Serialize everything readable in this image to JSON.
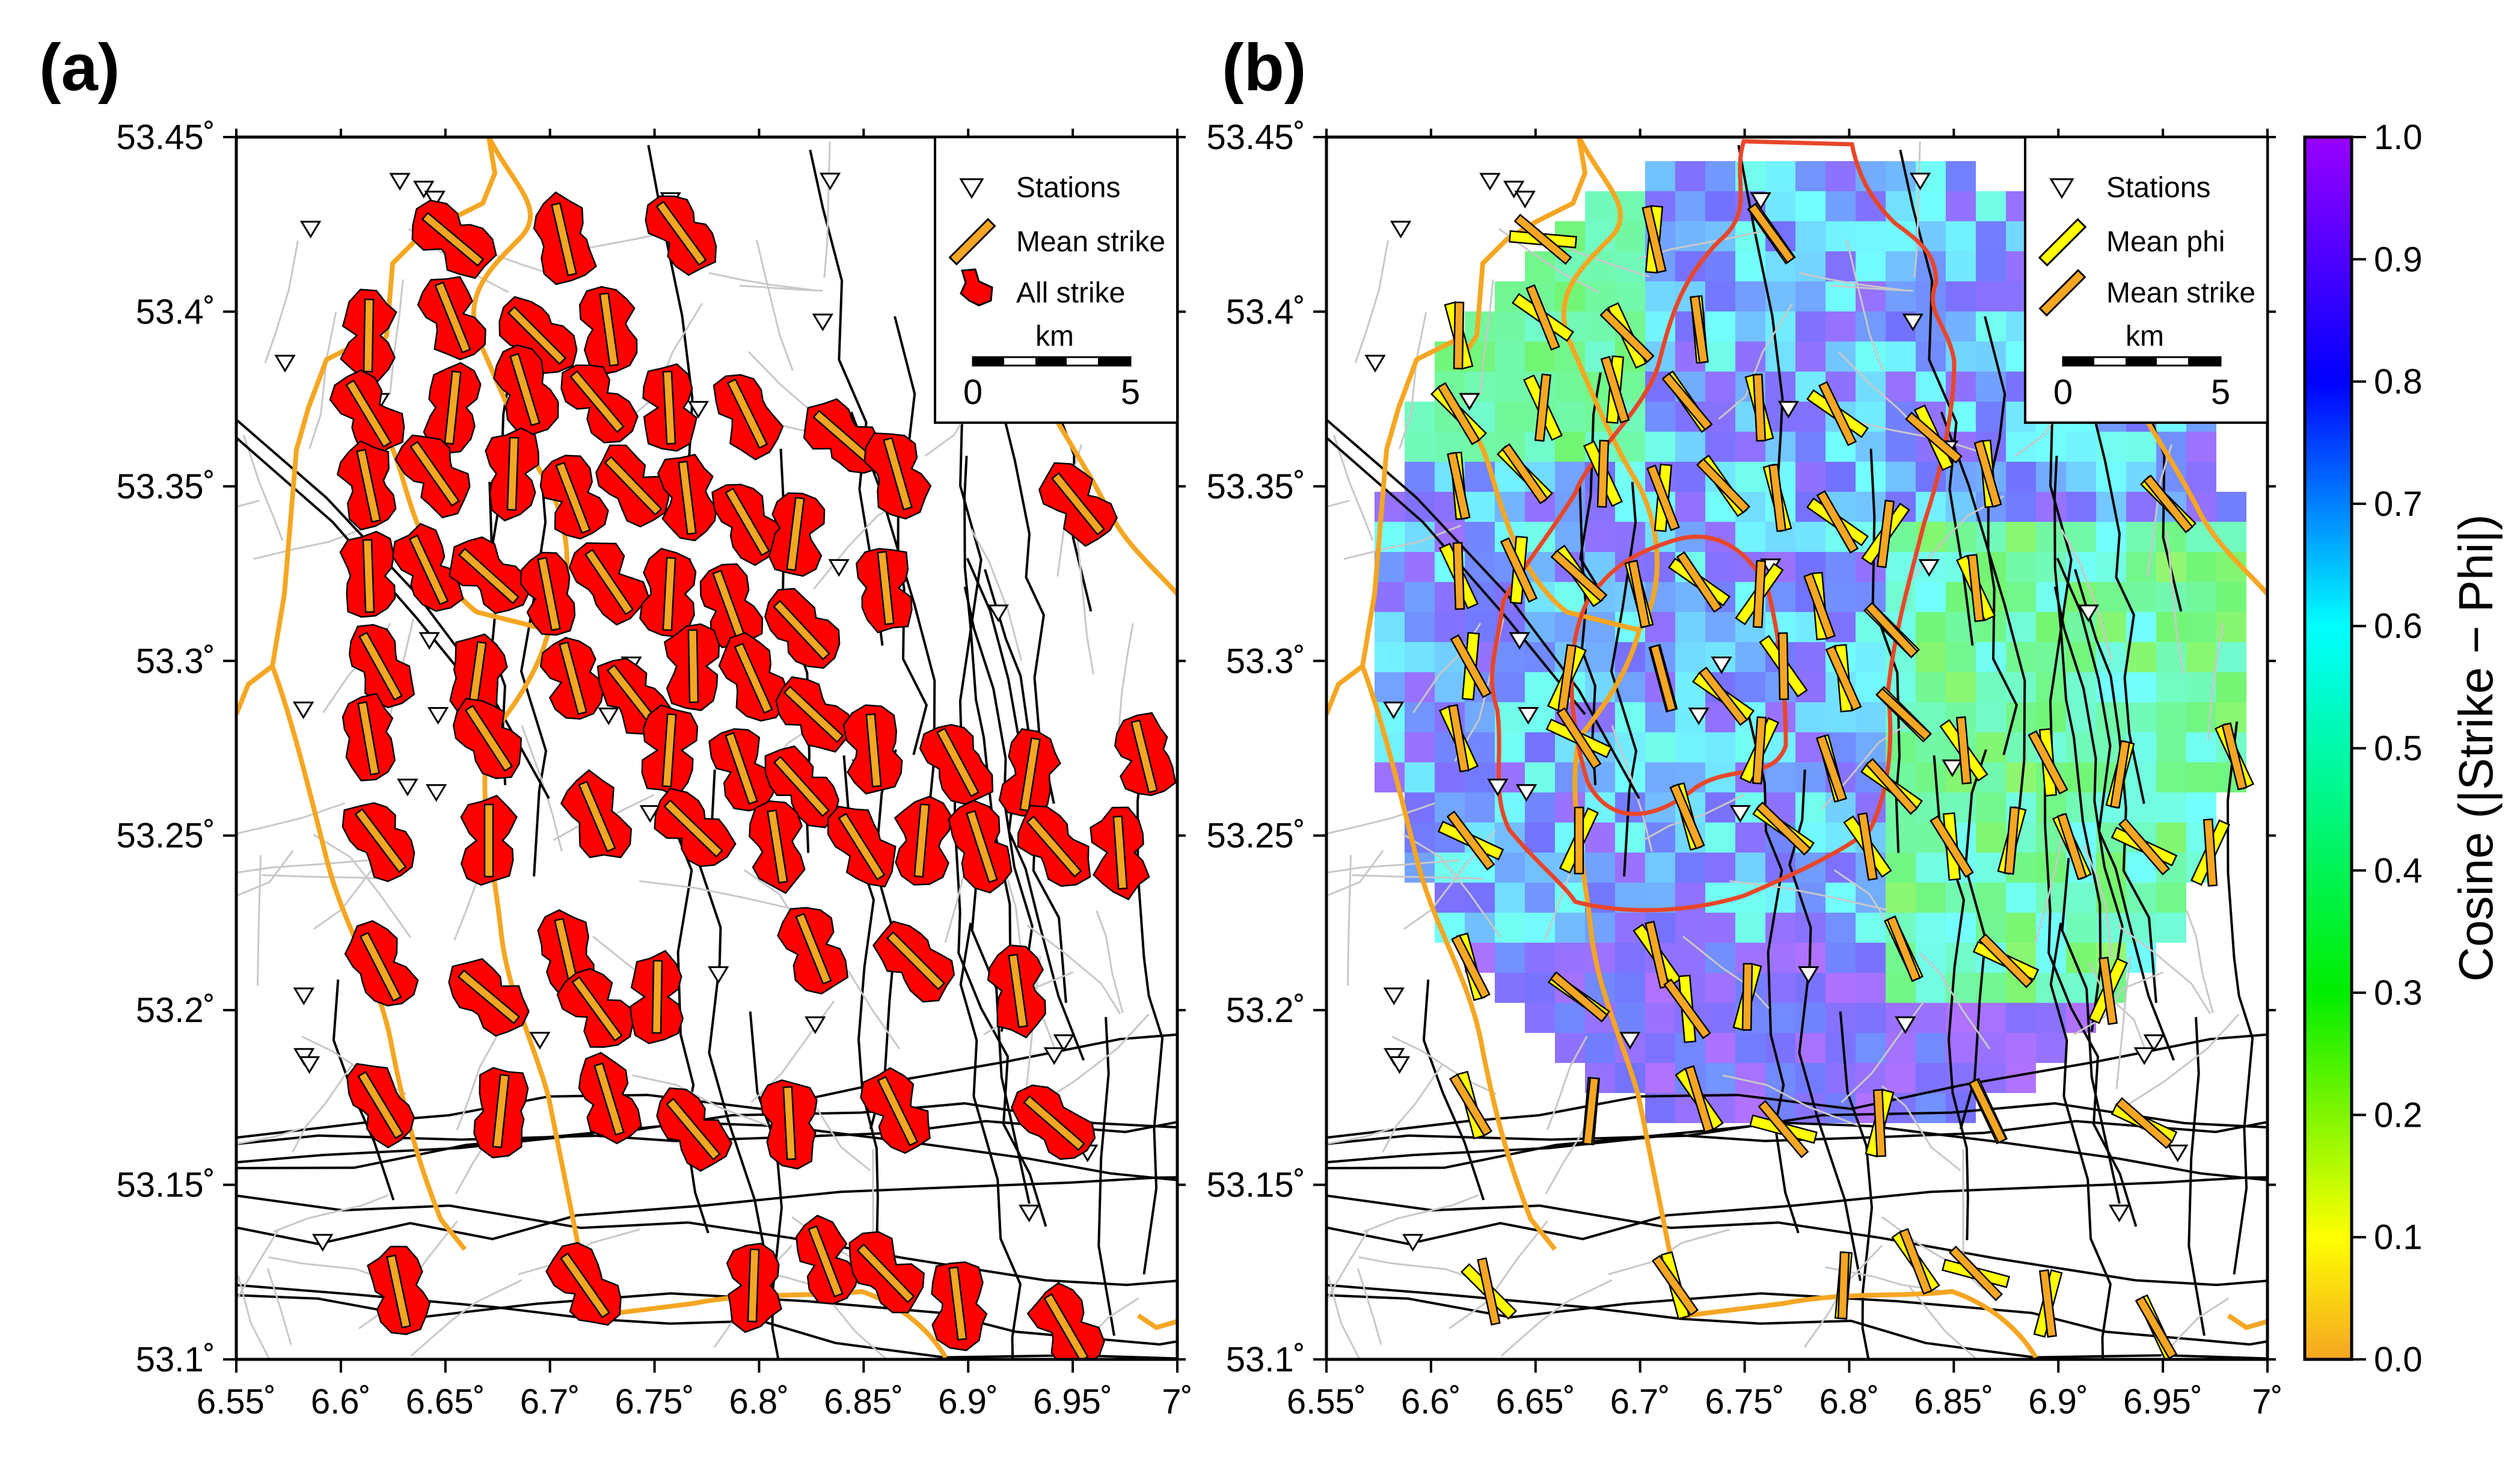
{
  "panels": [
    {
      "label": "(a)",
      "legend": {
        "items": [
          "Stations",
          "Mean strike",
          "All strike"
        ],
        "scale_title": "km",
        "scale_min": "0",
        "scale_max": "5"
      }
    },
    {
      "label": "(b)",
      "legend": {
        "items": [
          "Stations",
          "Mean phi",
          "Mean strike"
        ],
        "scale_title": "km",
        "scale_min": "0",
        "scale_max": "5"
      }
    }
  ],
  "axes": {
    "x_ticks": [
      "6.55˚",
      "6.6˚",
      "6.65˚",
      "6.7˚",
      "6.75˚",
      "6.8˚",
      "6.85˚",
      "6.9˚",
      "6.95˚",
      "7˚"
    ],
    "y_ticks": [
      "53.45˚",
      "53.4˚",
      "53.35˚",
      "53.3˚",
      "53.25˚",
      "53.2˚",
      "53.15˚",
      "53.1˚"
    ]
  },
  "colorbar": {
    "title": "Cosine (|Strike − Phi|)",
    "ticks": [
      "1.0",
      "0.9",
      "0.8",
      "0.7",
      "0.6",
      "0.5",
      "0.4",
      "0.3",
      "0.2",
      "0.1",
      "0.0"
    ],
    "colors": [
      "#f5a623",
      "#ffff00",
      "#00ee00",
      "#00ffff",
      "#0000ff",
      "#9900ff"
    ]
  },
  "colors": {
    "coast": "#f5a623",
    "rose_fill": "#ff0000",
    "strike_bar": "#f5a623",
    "phi_bar": "#ffff00",
    "red_contour": "#e8462a"
  }
}
